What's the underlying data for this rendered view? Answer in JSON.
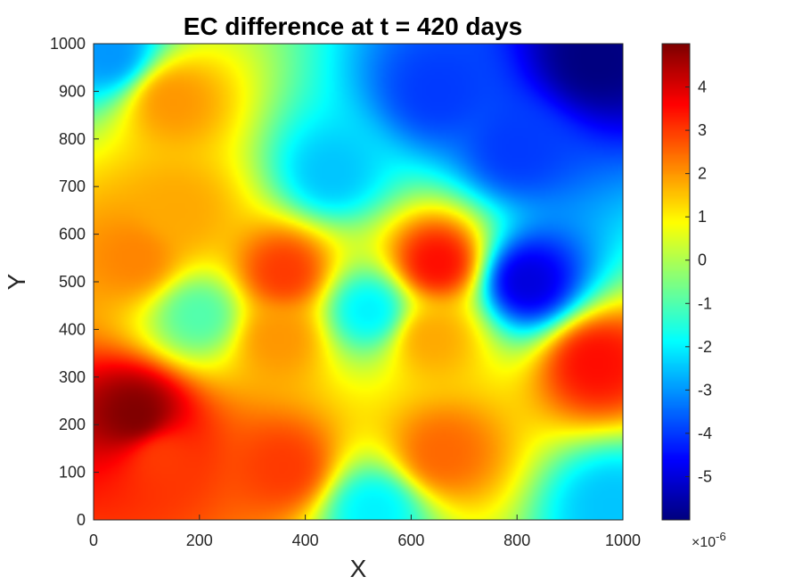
{
  "chart_data": {
    "type": "heatmap",
    "title": "EC difference at t = 420 days",
    "xlabel": "X",
    "ylabel": "Y",
    "xlim": [
      0,
      1000
    ],
    "ylim": [
      0,
      1000
    ],
    "x_ticks": [
      0,
      200,
      400,
      600,
      800,
      1000
    ],
    "y_ticks": [
      0,
      100,
      200,
      300,
      400,
      500,
      600,
      700,
      800,
      900,
      1000
    ],
    "colormap": "jet",
    "colorbar": {
      "range": [
        -6e-06,
        5e-06
      ],
      "ticks": [
        -5,
        -4,
        -3,
        -2,
        -1,
        0,
        1,
        2,
        3,
        4
      ],
      "tick_labels": [
        "-5",
        "-4",
        "-3",
        "-2",
        "-1",
        "0",
        "1",
        "2",
        "3",
        "4"
      ],
      "multiplier_base": "×10",
      "multiplier_exponent": "-6"
    },
    "field_features": [
      {
        "x": 80,
        "y": 220,
        "value": 5.0
      },
      {
        "x": 130,
        "y": 130,
        "value": 3.0
      },
      {
        "x": 150,
        "y": 880,
        "value": 2.0
      },
      {
        "x": 80,
        "y": 550,
        "value": 2.2
      },
      {
        "x": 160,
        "y": 650,
        "value": 1.8
      },
      {
        "x": 360,
        "y": 520,
        "value": 3.0
      },
      {
        "x": 350,
        "y": 380,
        "value": 2.0
      },
      {
        "x": 360,
        "y": 110,
        "value": 3.0
      },
      {
        "x": 650,
        "y": 540,
        "value": 3.5
      },
      {
        "x": 640,
        "y": 380,
        "value": 1.8
      },
      {
        "x": 660,
        "y": 140,
        "value": 2.5
      },
      {
        "x": 950,
        "y": 330,
        "value": 3.5
      },
      {
        "x": 820,
        "y": 500,
        "value": -5.0
      },
      {
        "x": 950,
        "y": 970,
        "value": -6.0
      },
      {
        "x": 650,
        "y": 900,
        "value": -4.0
      },
      {
        "x": 800,
        "y": 780,
        "value": -4.0
      },
      {
        "x": 450,
        "y": 730,
        "value": -2.5
      },
      {
        "x": 520,
        "y": 440,
        "value": -2.0
      },
      {
        "x": 200,
        "y": 430,
        "value": -1.0
      },
      {
        "x": 30,
        "y": 980,
        "value": -3.0
      },
      {
        "x": 530,
        "y": 20,
        "value": -2.0
      },
      {
        "x": 980,
        "y": 30,
        "value": -2.5
      }
    ]
  }
}
